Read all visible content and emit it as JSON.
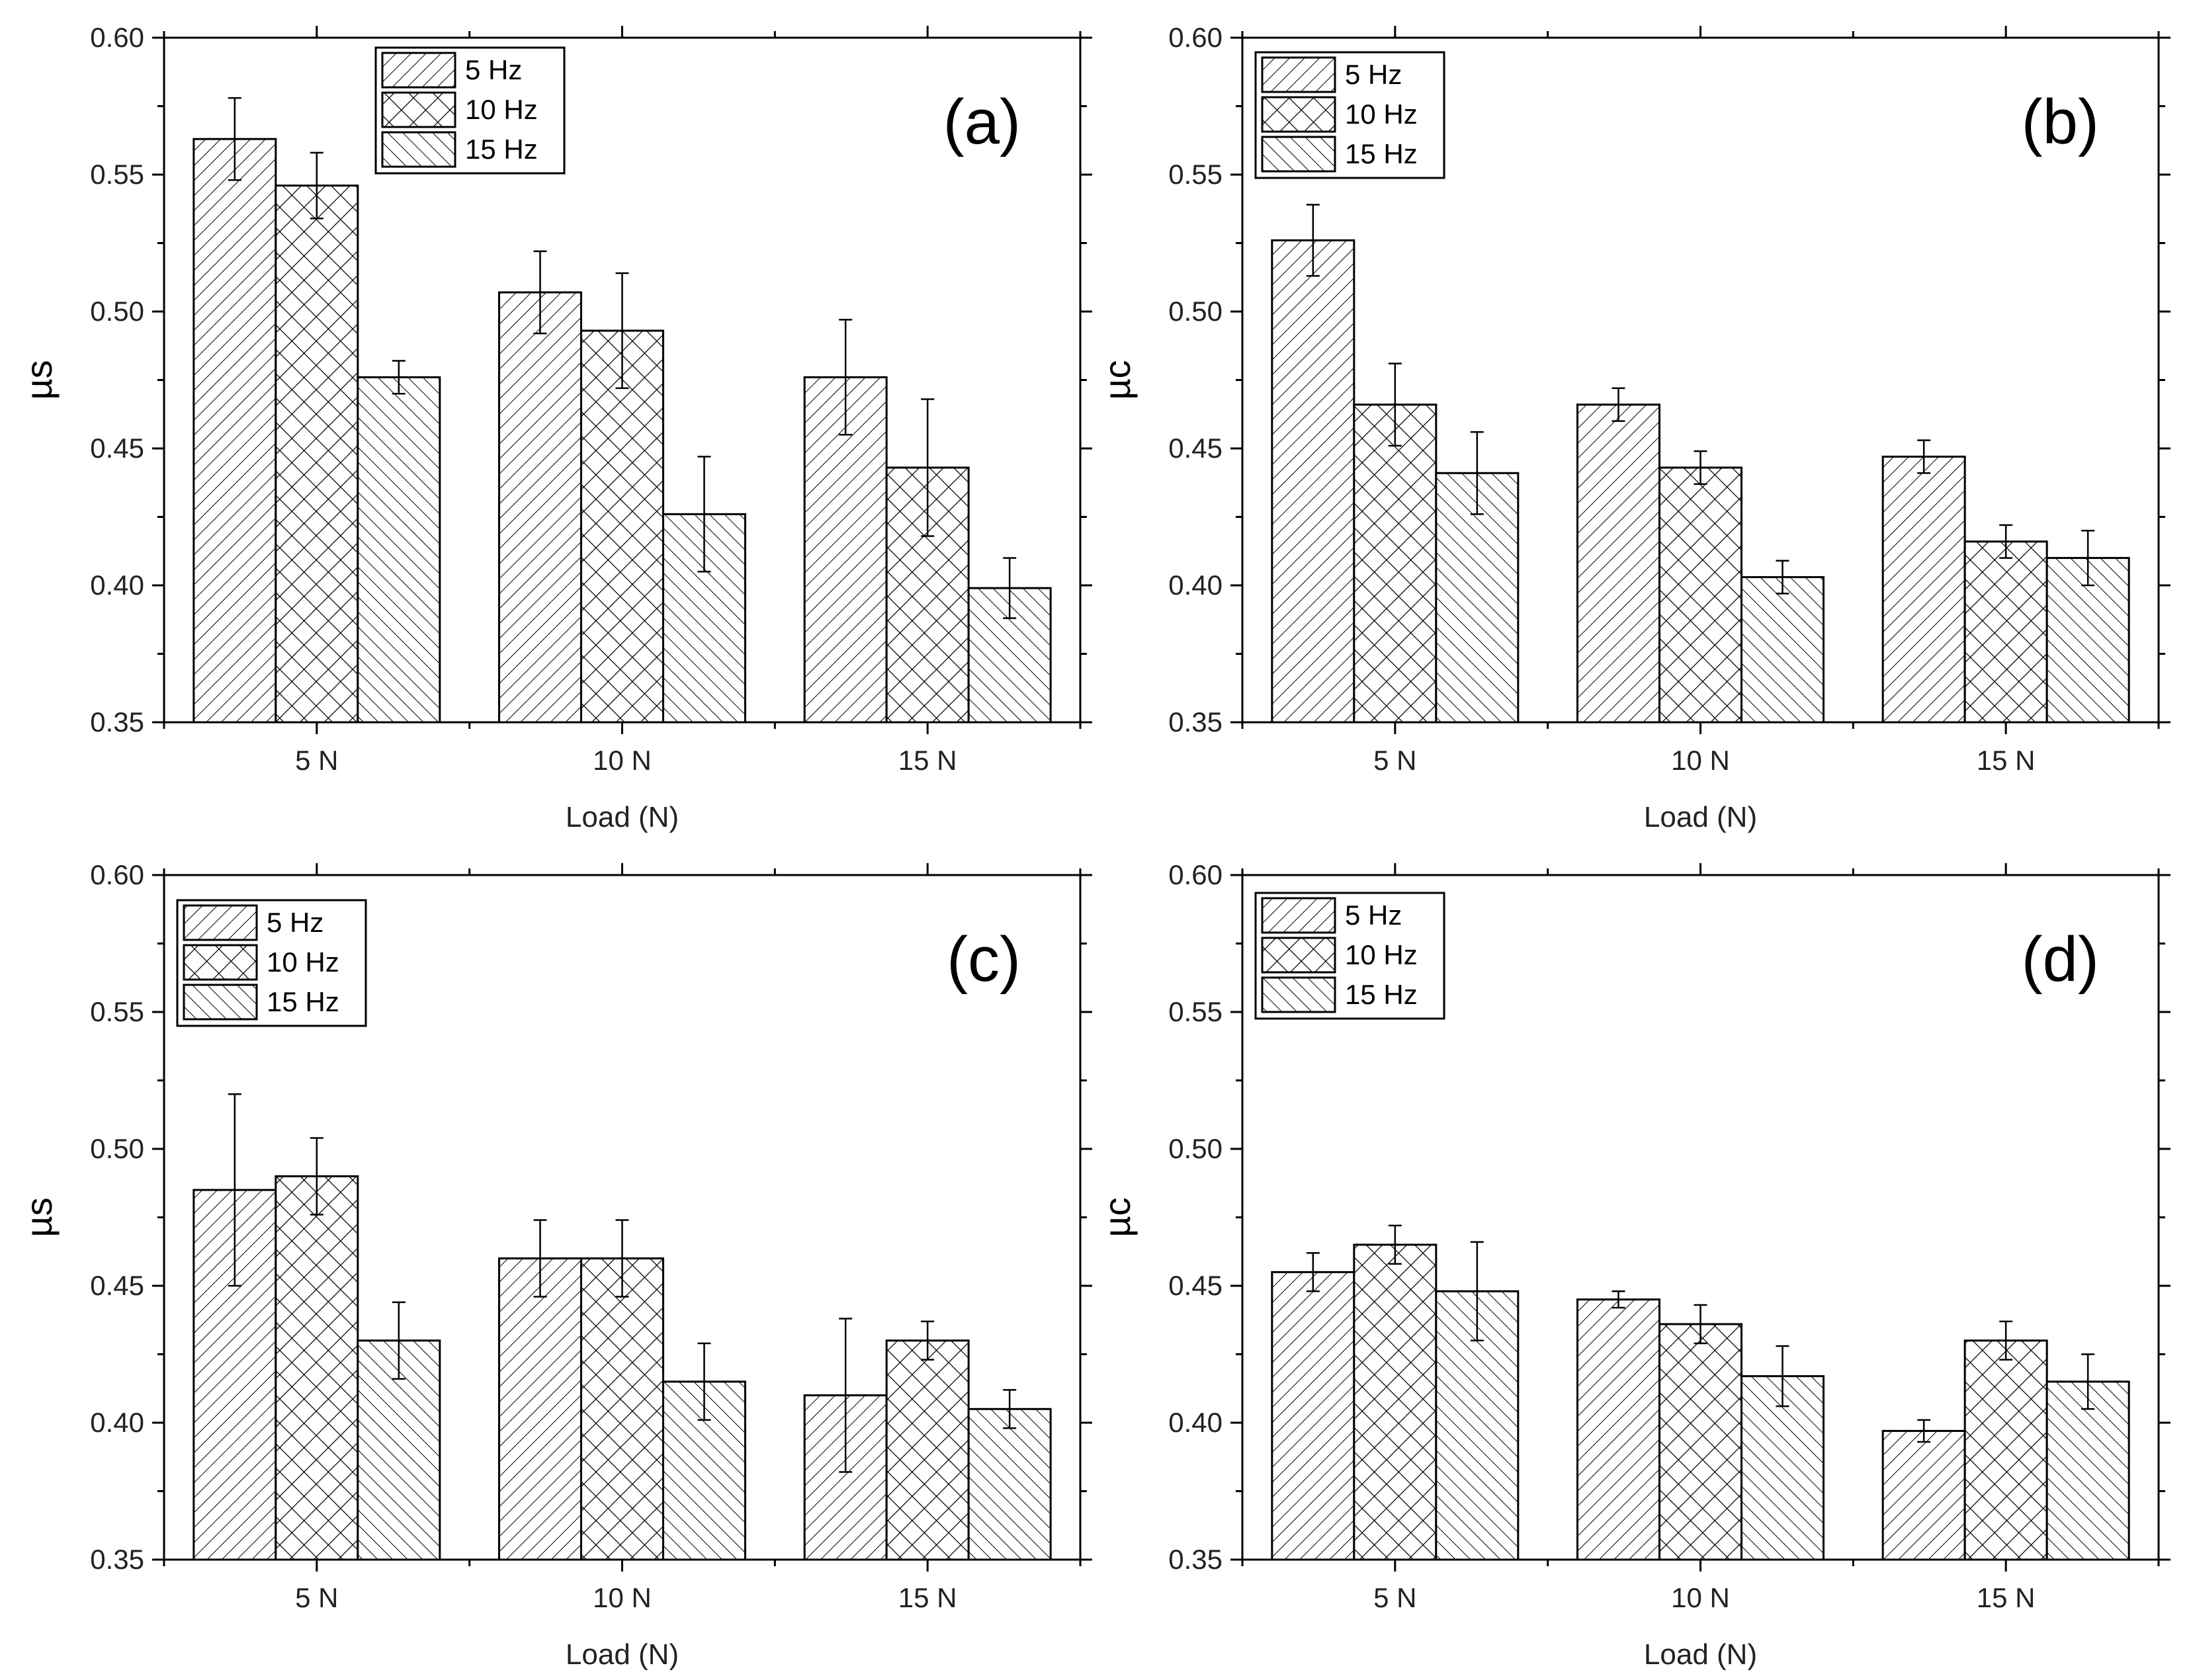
{
  "chart_data": [
    {
      "type": "bar",
      "panel_label": "(a)",
      "categories": [
        "5 N",
        "10 N",
        "15 N"
      ],
      "xlabel": "Load (N)",
      "ylabel": "µs",
      "ylim": [
        0.35,
        0.6
      ],
      "yticks": [
        "0.35",
        "0.40",
        "0.45",
        "0.50",
        "0.55",
        "0.60"
      ],
      "legend_position": "top-left",
      "series": [
        {
          "name": "5 Hz",
          "values": [
            0.563,
            0.507,
            0.476
          ],
          "errors": [
            0.015,
            0.015,
            0.021
          ]
        },
        {
          "name": "10 Hz",
          "values": [
            0.546,
            0.493,
            0.443
          ],
          "errors": [
            0.012,
            0.021,
            0.025
          ]
        },
        {
          "name": "15 Hz",
          "values": [
            0.476,
            0.426,
            0.399
          ],
          "errors": [
            0.006,
            0.021,
            0.011
          ]
        }
      ]
    },
    {
      "type": "bar",
      "panel_label": "(b)",
      "categories": [
        "5 N",
        "10 N",
        "15 N"
      ],
      "xlabel": "Load (N)",
      "ylabel": "µc",
      "ylim": [
        0.35,
        0.6
      ],
      "yticks": [
        "0.35",
        "0.40",
        "0.45",
        "0.50",
        "0.55",
        "0.60"
      ],
      "legend_position": "top-left",
      "series": [
        {
          "name": "5 Hz",
          "values": [
            0.526,
            0.466,
            0.447
          ],
          "errors": [
            0.013,
            0.006,
            0.006
          ]
        },
        {
          "name": "10 Hz",
          "values": [
            0.466,
            0.443,
            0.416
          ],
          "errors": [
            0.015,
            0.006,
            0.006
          ]
        },
        {
          "name": "15 Hz",
          "values": [
            0.441,
            0.403,
            0.41
          ],
          "errors": [
            0.015,
            0.006,
            0.01
          ]
        }
      ]
    },
    {
      "type": "bar",
      "panel_label": "(c)",
      "categories": [
        "5 N",
        "10 N",
        "15 N"
      ],
      "xlabel": "Load (N)",
      "ylabel": "µs",
      "ylim": [
        0.35,
        0.6
      ],
      "yticks": [
        "0.35",
        "0.40",
        "0.45",
        "0.50",
        "0.55",
        "0.60"
      ],
      "legend_position": "top-left",
      "series": [
        {
          "name": "5 Hz",
          "values": [
            0.485,
            0.46,
            0.41
          ],
          "errors": [
            0.035,
            0.014,
            0.028
          ]
        },
        {
          "name": "10 Hz",
          "values": [
            0.49,
            0.46,
            0.43
          ],
          "errors": [
            0.014,
            0.014,
            0.007
          ]
        },
        {
          "name": "15 Hz",
          "values": [
            0.43,
            0.415,
            0.405
          ],
          "errors": [
            0.014,
            0.014,
            0.007
          ]
        }
      ]
    },
    {
      "type": "bar",
      "panel_label": "(d)",
      "categories": [
        "5 N",
        "10 N",
        "15 N"
      ],
      "xlabel": "Load (N)",
      "ylabel": "µc",
      "ylim": [
        0.35,
        0.6
      ],
      "yticks": [
        "0.35",
        "0.40",
        "0.45",
        "0.50",
        "0.55",
        "0.60"
      ],
      "legend_position": "top-left",
      "series": [
        {
          "name": "5 Hz",
          "values": [
            0.455,
            0.445,
            0.397
          ],
          "errors": [
            0.007,
            0.003,
            0.004
          ]
        },
        {
          "name": "10 Hz",
          "values": [
            0.465,
            0.436,
            0.43
          ],
          "errors": [
            0.007,
            0.007,
            0.007
          ]
        },
        {
          "name": "15 Hz",
          "values": [
            0.448,
            0.417,
            0.415
          ],
          "errors": [
            0.018,
            0.011,
            0.01
          ]
        }
      ]
    }
  ]
}
